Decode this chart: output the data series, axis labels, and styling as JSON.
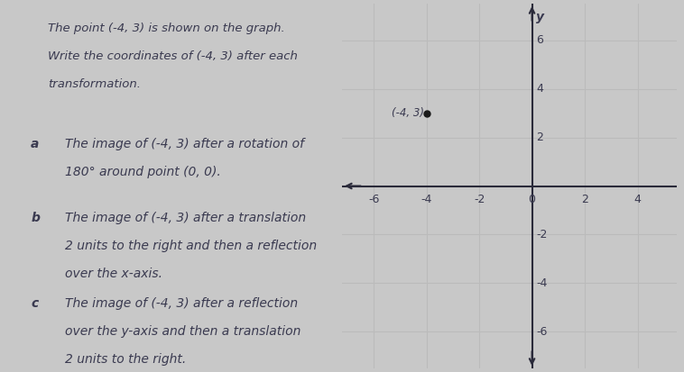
{
  "background_color": "#c8c8c8",
  "paper_color": "#e8e8e8",
  "point": [
    -4,
    3
  ],
  "point_label": "(-4, 3)",
  "x_ticks": [
    -6,
    -4,
    -2,
    0,
    2,
    4
  ],
  "y_ticks": [
    -6,
    -4,
    -2,
    2,
    4,
    6
  ],
  "x_lim": [
    -7.2,
    5.5
  ],
  "y_lim": [
    -7.5,
    7.5
  ],
  "grid_color": "#bbbbbb",
  "axis_color": "#2a2a3a",
  "point_color": "#1a1a1a",
  "text_color": "#3a3a50",
  "title_lines": [
    "The point (-4, 3) is shown on the graph.",
    "Write the coordinates of (-4, 3) after each",
    "transformation."
  ],
  "item_a_label": "a",
  "item_a_lines": [
    "The image of (-4, 3) after a rotation of",
    "180° around point (0, 0)."
  ],
  "item_b_label": "b",
  "item_b_lines": [
    "The image of (-4, 3) after a translation",
    "2 units to the right and then a reflection",
    "over the x-axis."
  ],
  "item_c_label": "c",
  "item_c_lines": [
    "The image of (-4, 3) after a reflection",
    "over the y-axis and then a translation",
    "2 units to the right."
  ],
  "font_size_title": 9.5,
  "font_size_label": 10,
  "font_size_item": 10,
  "font_size_axis": 9,
  "font_size_ylabel": 10
}
